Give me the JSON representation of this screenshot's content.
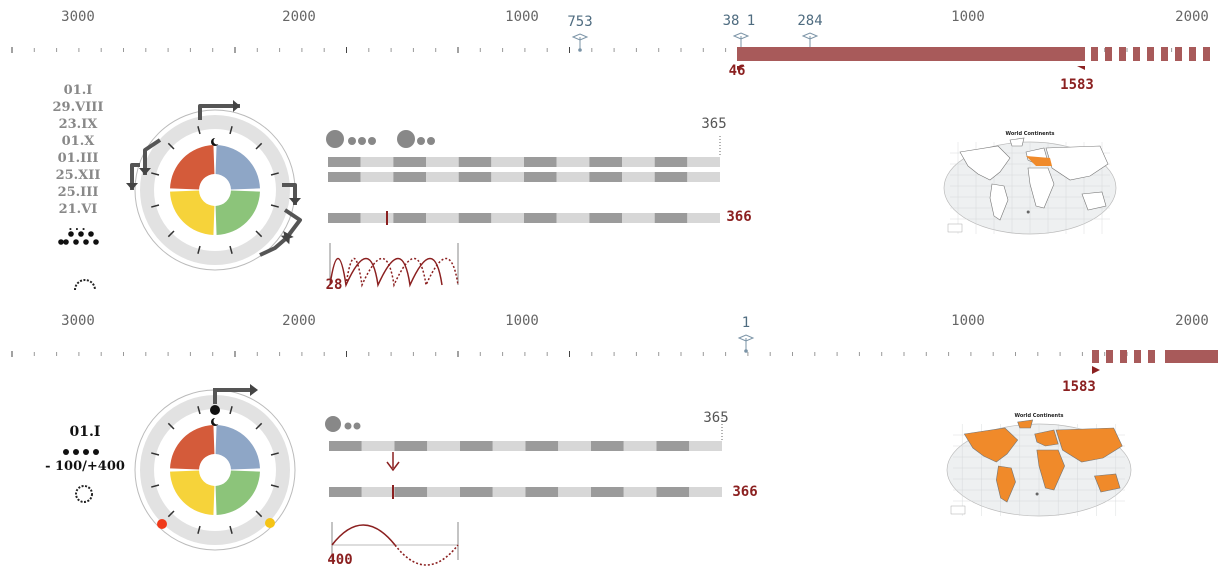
{
  "panel_top": {
    "axis_labels": [
      "3000",
      "2000",
      "1000",
      "1000",
      "2000"
    ],
    "markers": [
      "753",
      "38",
      "1",
      "284"
    ],
    "red_labels": [
      "46",
      "1583"
    ],
    "dates": [
      "01.I",
      "29.VIII",
      "23.IX",
      "01.X",
      "01.III",
      "25.XII",
      "25.III",
      "21.VI"
    ],
    "ellipsis": "...",
    "day_count_top": "365",
    "day_count_bottom": "366",
    "wave_label": "28",
    "map_title": "World Continents"
  },
  "panel_bottom": {
    "axis_labels": [
      "3000",
      "2000",
      "1000",
      "1000",
      "2000"
    ],
    "markers": [
      "1"
    ],
    "red_labels": [
      "1583"
    ],
    "dates": [
      "01.I"
    ],
    "leap_rule": "- 100/+400",
    "day_count_top": "365",
    "day_count_bottom": "366",
    "wave_label": "400",
    "map_title": "World Continents"
  },
  "colors": {
    "timeline_bar": "#a85a5a",
    "label_red": "#8b2020",
    "marker_blue": "#4f6c80",
    "wheel_red": "#d45b3a",
    "wheel_blue": "#8ea6c6",
    "wheel_green": "#8cc47a",
    "wheel_yellow": "#f6d33a",
    "map_orange": "#f08a2a"
  }
}
